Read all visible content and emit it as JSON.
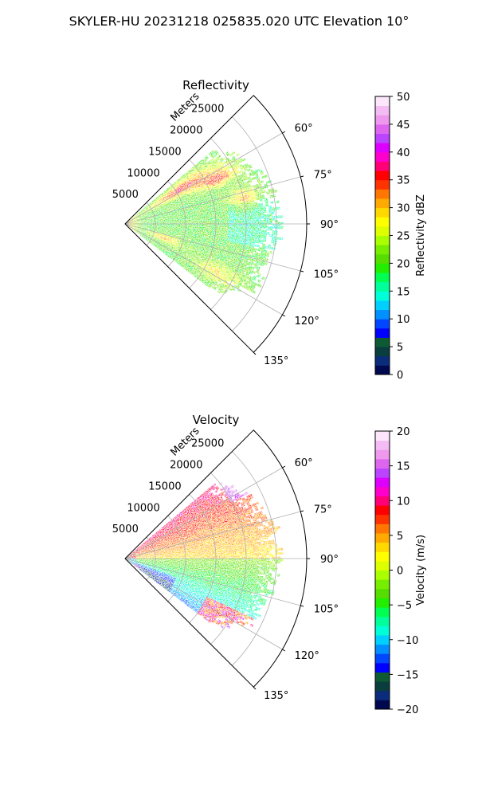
{
  "figure_title": "SKYLER-HU  20231218  025835.020 UTC Elevation 10°",
  "chart_data": [
    {
      "type": "heatmap",
      "projection": "polar-sector",
      "title": "Reflectivity",
      "radial_label": "Meters",
      "radial_ticks": [
        5000,
        10000,
        15000,
        20000,
        25000
      ],
      "radial_tick_labels": [
        "5000",
        "10000",
        "15000",
        "20000",
        "25000"
      ],
      "r_max": 30000,
      "azimuth_range_deg": [
        45,
        135
      ],
      "azimuth_ticks": [
        60,
        75,
        90,
        105,
        120,
        135
      ],
      "azimuth_tick_labels": [
        "60°",
        "75°",
        "90°",
        "105°",
        "120°",
        "135°"
      ],
      "colorbar": {
        "label": "Reflectivity dBZ",
        "min": 0,
        "max": 50,
        "ticks": [
          0,
          5,
          10,
          15,
          20,
          25,
          30,
          35,
          40,
          45,
          50
        ],
        "tick_labels": [
          "0",
          "5",
          "10",
          "15",
          "20",
          "25",
          "30",
          "35",
          "40",
          "45",
          "50"
        ],
        "colors": [
          "#00084f",
          "#0a2c7a",
          "#0a3d3d",
          "#0e5a35",
          "#0000ff",
          "#0047ff",
          "#0090ff",
          "#00d0ff",
          "#00ffd8",
          "#00ff9a",
          "#00ff50",
          "#22ee00",
          "#55dd00",
          "#77ee00",
          "#aaff00",
          "#ddff00",
          "#ffff00",
          "#ffd800",
          "#ffaa00",
          "#ff7700",
          "#ff3300",
          "#ff0000",
          "#ff0077",
          "#ff00cc",
          "#dd00ff",
          "#bb44ff",
          "#dd66ee",
          "#ee99ee",
          "#f4bbf4",
          "#fbe6fb"
        ]
      },
      "coverage_deg": [
        50,
        127
      ]
    },
    {
      "type": "heatmap",
      "projection": "polar-sector",
      "title": "Velocity",
      "radial_label": "Meters",
      "radial_ticks": [
        5000,
        10000,
        15000,
        20000,
        25000
      ],
      "radial_tick_labels": [
        "5000",
        "10000",
        "15000",
        "20000",
        "25000"
      ],
      "r_max": 30000,
      "azimuth_range_deg": [
        45,
        135
      ],
      "azimuth_ticks": [
        60,
        75,
        90,
        105,
        120,
        135
      ],
      "azimuth_tick_labels": [
        "60°",
        "75°",
        "90°",
        "105°",
        "120°",
        "135°"
      ],
      "colorbar": {
        "label": "Velocity (m/s)",
        "min": -20,
        "max": 20,
        "ticks": [
          -20,
          -15,
          -10,
          -5,
          0,
          5,
          10,
          15,
          20
        ],
        "tick_labels": [
          "−20",
          "−15",
          "−10",
          "−5",
          "0",
          "5",
          "10",
          "15",
          "20"
        ],
        "colors": [
          "#00084f",
          "#0a2c7a",
          "#0a3d3d",
          "#0e5a35",
          "#0000ff",
          "#0047ff",
          "#0090ff",
          "#00d0ff",
          "#00ffd8",
          "#00ff9a",
          "#00ff50",
          "#22ee00",
          "#55dd00",
          "#77ee00",
          "#aaff00",
          "#ddff00",
          "#ffff00",
          "#ffd800",
          "#ffaa00",
          "#ff7700",
          "#ff3300",
          "#ff0000",
          "#ff0077",
          "#ff00cc",
          "#dd00ff",
          "#bb44ff",
          "#dd66ee",
          "#ee99ee",
          "#f4bbf4",
          "#fbe6fb"
        ]
      },
      "coverage_deg": [
        50,
        127
      ]
    }
  ]
}
